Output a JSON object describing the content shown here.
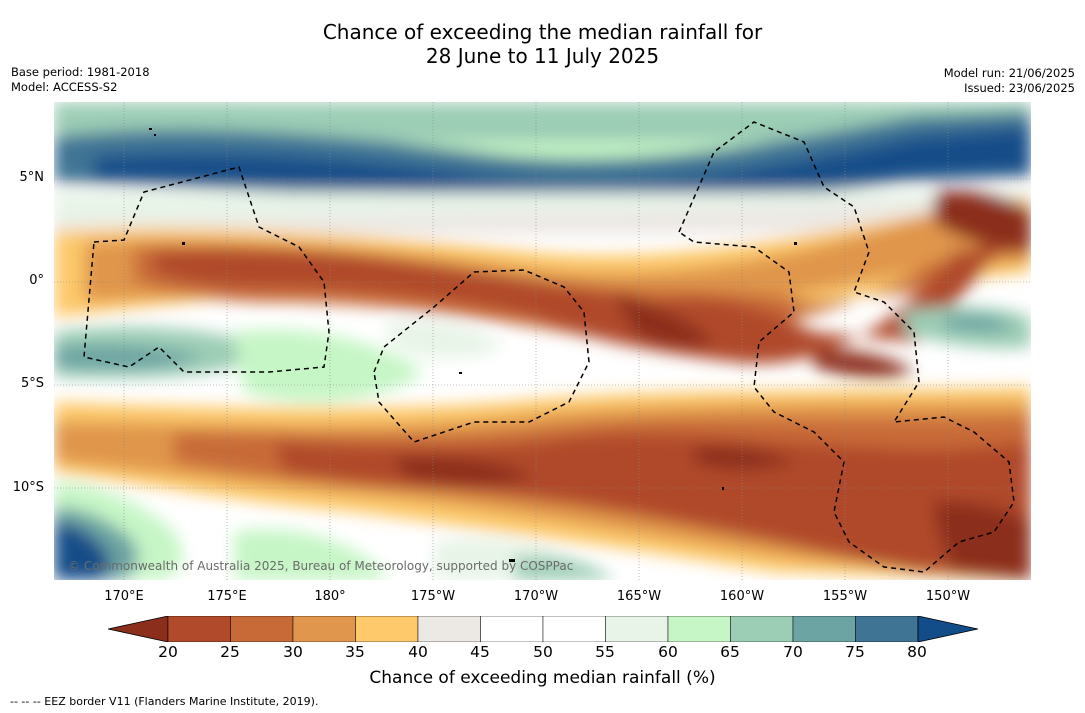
{
  "title_line1": "Chance of exceeding the median rainfall for",
  "title_line2": "28 June to 11 July 2025",
  "meta_left": {
    "base_period": "Base period: 1981-2018",
    "model": "Model: ACCESS-S2"
  },
  "meta_right": {
    "model_run": "Model run: 21/06/2025",
    "issued": "Issued: 23/06/2025"
  },
  "lat_labels": [
    "5°N",
    "0°",
    "5°S",
    "10°S"
  ],
  "lon_labels": [
    "170°E",
    "175°E",
    "180°",
    "175°W",
    "170°W",
    "165°W",
    "160°W",
    "155°W",
    "150°W"
  ],
  "copyright": "© Commonwealth of Australia 2025, Bureau of Meteorology, supported by COSPPac",
  "colorbar": {
    "ticks": [
      "20",
      "25",
      "30",
      "35",
      "40",
      "45",
      "50",
      "55",
      "60",
      "65",
      "70",
      "75",
      "80"
    ],
    "colors": [
      "#8c2e1c",
      "#b04a2a",
      "#c86a38",
      "#e0964c",
      "#fdc96a",
      "#ece8e4",
      "#ffffff",
      "#ffffff",
      "#e8f4e8",
      "#c6f6c6",
      "#9ccdb5",
      "#6ca3a3",
      "#3f7495",
      "#134d89"
    ],
    "label": "Chance of exceeding median rainfall (%)"
  },
  "footnote": "--  --  -- EEZ border V11 (Flanders Marine Institute, 2019)."
}
